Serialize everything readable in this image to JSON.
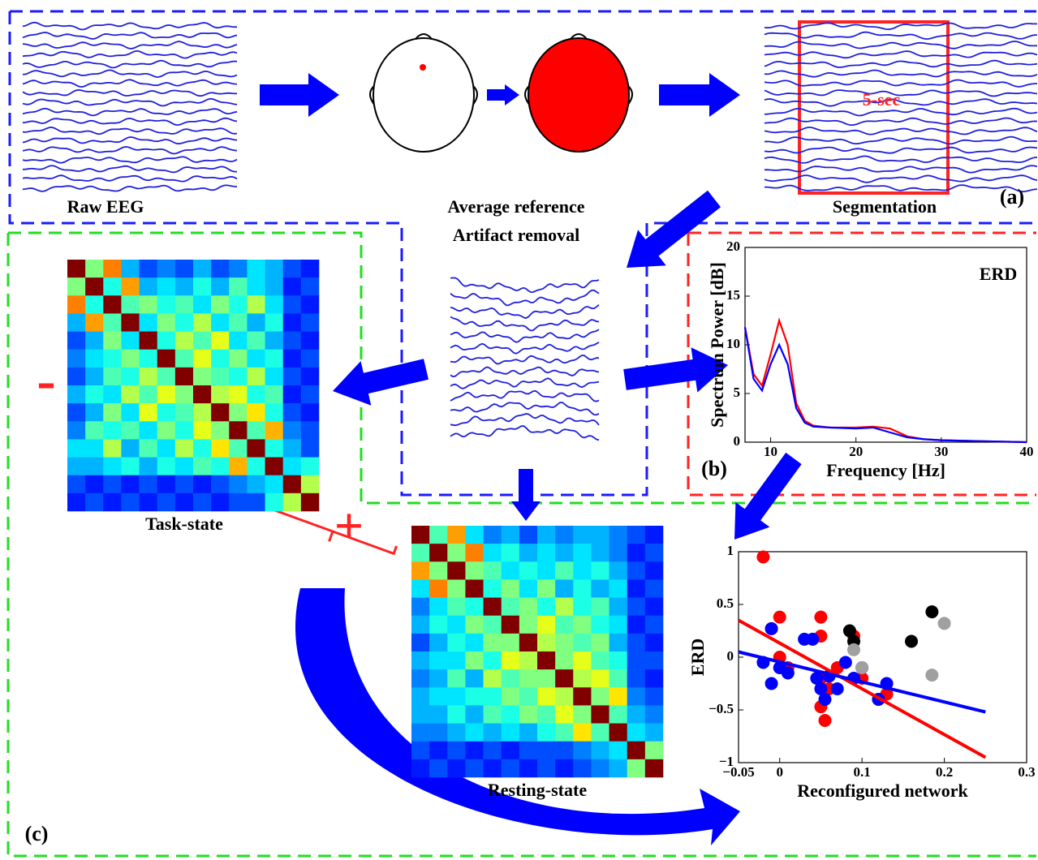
{
  "labels": {
    "raw_eeg": "Raw EEG",
    "average_reference": "Average reference",
    "artifact_removal": "Artifact removal",
    "segmentation": "Segmentation",
    "window": "5-sec",
    "panel_a": "(a)",
    "panel_b": "(b)",
    "panel_c": "(c)",
    "task_state": "Task-state",
    "resting_state": "Resting-state",
    "minus": "-",
    "plus": "+"
  },
  "matrices": {
    "colormap": "jet",
    "task": [
      [
        1,
        0.5,
        0.75,
        0.3,
        0.2,
        0.25,
        0.2,
        0.3,
        0.2,
        0.25,
        0.35,
        0.3,
        0.2,
        0.15
      ],
      [
        0.5,
        1,
        0.4,
        0.72,
        0.3,
        0.35,
        0.3,
        0.4,
        0.3,
        0.45,
        0.35,
        0.3,
        0.15,
        0.2
      ],
      [
        0.75,
        0.4,
        1,
        0.45,
        0.5,
        0.4,
        0.45,
        0.35,
        0.5,
        0.4,
        0.55,
        0.35,
        0.2,
        0.15
      ],
      [
        0.3,
        0.72,
        0.45,
        1,
        0.35,
        0.5,
        0.4,
        0.55,
        0.35,
        0.45,
        0.3,
        0.4,
        0.15,
        0.2
      ],
      [
        0.2,
        0.3,
        0.5,
        0.35,
        1,
        0.4,
        0.55,
        0.45,
        0.6,
        0.35,
        0.45,
        0.3,
        0.2,
        0.15
      ],
      [
        0.25,
        0.35,
        0.4,
        0.5,
        0.4,
        1,
        0.45,
        0.6,
        0.4,
        0.5,
        0.35,
        0.4,
        0.15,
        0.2
      ],
      [
        0.2,
        0.3,
        0.45,
        0.4,
        0.55,
        0.45,
        1,
        0.5,
        0.45,
        0.4,
        0.55,
        0.35,
        0.2,
        0.15
      ],
      [
        0.3,
        0.4,
        0.35,
        0.55,
        0.45,
        0.6,
        0.5,
        1,
        0.55,
        0.6,
        0.4,
        0.45,
        0.15,
        0.2
      ],
      [
        0.2,
        0.3,
        0.5,
        0.35,
        0.6,
        0.4,
        0.45,
        0.55,
        1,
        0.5,
        0.65,
        0.4,
        0.2,
        0.15
      ],
      [
        0.25,
        0.45,
        0.4,
        0.45,
        0.35,
        0.5,
        0.4,
        0.6,
        0.5,
        1,
        0.45,
        0.7,
        0.25,
        0.2
      ],
      [
        0.35,
        0.35,
        0.55,
        0.3,
        0.45,
        0.35,
        0.55,
        0.4,
        0.65,
        0.45,
        1,
        0.4,
        0.3,
        0.2
      ],
      [
        0.3,
        0.3,
        0.35,
        0.4,
        0.3,
        0.4,
        0.35,
        0.45,
        0.4,
        0.7,
        0.4,
        1,
        0.35,
        0.4
      ],
      [
        0.2,
        0.15,
        0.2,
        0.15,
        0.2,
        0.15,
        0.2,
        0.15,
        0.2,
        0.25,
        0.3,
        0.35,
        1,
        0.55
      ],
      [
        0.15,
        0.2,
        0.15,
        0.2,
        0.15,
        0.2,
        0.15,
        0.2,
        0.15,
        0.2,
        0.2,
        0.4,
        0.55,
        1
      ]
    ],
    "resting": [
      [
        1,
        0.45,
        0.72,
        0.35,
        0.25,
        0.3,
        0.2,
        0.3,
        0.25,
        0.3,
        0.3,
        0.25,
        0.2,
        0.15
      ],
      [
        0.45,
        1,
        0.5,
        0.75,
        0.35,
        0.4,
        0.3,
        0.35,
        0.3,
        0.35,
        0.3,
        0.25,
        0.15,
        0.2
      ],
      [
        0.72,
        0.5,
        1,
        0.5,
        0.45,
        0.35,
        0.4,
        0.35,
        0.45,
        0.35,
        0.4,
        0.3,
        0.2,
        0.15
      ],
      [
        0.35,
        0.75,
        0.5,
        1,
        0.4,
        0.5,
        0.35,
        0.5,
        0.3,
        0.4,
        0.3,
        0.35,
        0.15,
        0.2
      ],
      [
        0.25,
        0.35,
        0.45,
        0.4,
        1,
        0.45,
        0.5,
        0.4,
        0.55,
        0.4,
        0.45,
        0.3,
        0.2,
        0.15
      ],
      [
        0.3,
        0.4,
        0.35,
        0.5,
        0.45,
        1,
        0.5,
        0.6,
        0.45,
        0.5,
        0.4,
        0.35,
        0.15,
        0.2
      ],
      [
        0.2,
        0.3,
        0.4,
        0.35,
        0.5,
        0.5,
        1,
        0.55,
        0.5,
        0.45,
        0.5,
        0.3,
        0.2,
        0.15
      ],
      [
        0.3,
        0.35,
        0.35,
        0.5,
        0.4,
        0.6,
        0.55,
        1,
        0.5,
        0.6,
        0.45,
        0.4,
        0.2,
        0.2
      ],
      [
        0.25,
        0.3,
        0.45,
        0.3,
        0.55,
        0.45,
        0.5,
        0.5,
        1,
        0.55,
        0.6,
        0.45,
        0.2,
        0.15
      ],
      [
        0.3,
        0.35,
        0.35,
        0.4,
        0.4,
        0.5,
        0.45,
        0.6,
        0.55,
        1,
        0.5,
        0.65,
        0.25,
        0.2
      ],
      [
        0.3,
        0.3,
        0.4,
        0.3,
        0.45,
        0.4,
        0.5,
        0.45,
        0.6,
        0.5,
        1,
        0.45,
        0.3,
        0.25
      ],
      [
        0.25,
        0.25,
        0.3,
        0.35,
        0.3,
        0.35,
        0.3,
        0.4,
        0.45,
        0.65,
        0.45,
        1,
        0.35,
        0.3
      ],
      [
        0.2,
        0.15,
        0.2,
        0.15,
        0.2,
        0.15,
        0.2,
        0.2,
        0.2,
        0.25,
        0.3,
        0.35,
        1,
        0.5
      ],
      [
        0.15,
        0.2,
        0.15,
        0.2,
        0.15,
        0.2,
        0.15,
        0.2,
        0.15,
        0.2,
        0.25,
        0.3,
        0.5,
        1
      ]
    ]
  },
  "chart_data": [
    {
      "type": "line",
      "ylabel": "Spectrum Power [dB]",
      "xlabel": "Frequency [Hz]",
      "annotation": "ERD",
      "xlim": [
        7,
        40
      ],
      "ylim": [
        0,
        20
      ],
      "xticks": [
        10,
        20,
        30,
        40
      ],
      "yticks": [
        0,
        5,
        10,
        15,
        20
      ],
      "x": [
        7,
        8,
        9,
        10,
        11,
        12,
        13,
        14,
        15,
        17,
        20,
        22,
        24,
        26,
        28,
        30,
        35,
        40
      ],
      "series": [
        {
          "color": "#ff0000",
          "values": [
            11.8,
            7,
            5.8,
            9,
            12.5,
            10,
            4,
            2.2,
            1.7,
            1.5,
            1.5,
            1.6,
            1.4,
            0.6,
            0.3,
            0.2,
            0.1,
            0
          ]
        },
        {
          "color": "#0000ff",
          "values": [
            11.8,
            6.5,
            5.3,
            8,
            10,
            8,
            3.5,
            2,
            1.6,
            1.5,
            1.4,
            1.5,
            1,
            0.5,
            0.3,
            0.2,
            0.1,
            0
          ]
        }
      ]
    },
    {
      "type": "scatter",
      "ylabel": "ERD",
      "xlabel": "Reconfigured network",
      "xlim": [
        -0.05,
        0.3
      ],
      "ylim": [
        -1,
        1
      ],
      "xticks": [
        {
          "value": -0.05,
          "label": "−0.05"
        },
        0,
        0.1,
        0.2,
        0.3
      ],
      "yticks": [
        {
          "value": -1,
          "label": "−1"
        },
        {
          "value": -0.5,
          "label": "−0.5"
        },
        0,
        0.5,
        1
      ],
      "series": [
        {
          "color": "#ff0000",
          "x": [
            -0.02,
            0,
            -0.01,
            0,
            0.01,
            0.05,
            0.05,
            0.05,
            0.05,
            0.055,
            0.06,
            0.09,
            0.1,
            0.12,
            0.13,
            0.07
          ],
          "values": [
            0.95,
            0.38,
            0.27,
            0,
            -0.1,
            0.38,
            0.2,
            -0.2,
            -0.47,
            -0.6,
            -0.3,
            0.2,
            -0.2,
            -0.4,
            -0.35,
            -0.1
          ]
        },
        {
          "color": "#0000ff",
          "x": [
            -0.01,
            -0.02,
            -0.01,
            0,
            0.01,
            0.03,
            0.04,
            0.045,
            0.05,
            0.055,
            0.06,
            0.08,
            0.09,
            0.1,
            0.12,
            0.13,
            0.07
          ],
          "values": [
            0.27,
            -0.05,
            -0.25,
            -0.1,
            -0.15,
            0.17,
            0.17,
            -0.2,
            -0.3,
            -0.4,
            -0.18,
            -0.05,
            -0.2,
            -0.1,
            -0.4,
            -0.25,
            -0.3
          ]
        },
        {
          "color": "#000000",
          "x": [
            0.085,
            0.09,
            0.16,
            0.185
          ],
          "values": [
            0.25,
            0.15,
            0.15,
            0.43
          ]
        },
        {
          "color": "#a0a0a0",
          "x": [
            0.09,
            0.1,
            0.185,
            0.2
          ],
          "values": [
            0.07,
            -0.1,
            -0.17,
            0.32
          ]
        }
      ],
      "fits": [
        {
          "color": "#ff0000",
          "x": [
            -0.05,
            0.25
          ],
          "values": [
            0.35,
            -0.95
          ]
        },
        {
          "color": "#0000ff",
          "x": [
            -0.05,
            0.25
          ],
          "values": [
            0.05,
            -0.52
          ]
        }
      ]
    }
  ]
}
